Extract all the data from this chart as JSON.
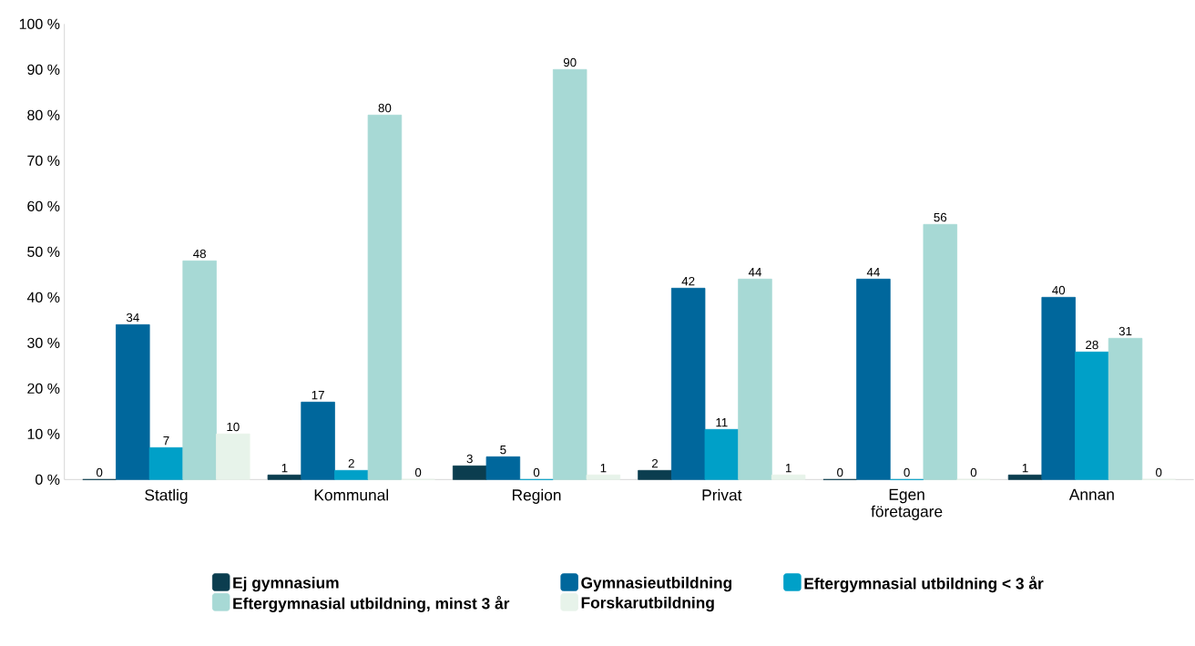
{
  "chart_data": {
    "type": "bar",
    "categories": [
      "Statlig",
      "Kommunal",
      "Region",
      "Privat",
      "Egen företagare",
      "Annan"
    ],
    "series": [
      {
        "name": "Ej gymnasium",
        "color": "#0b3d4f",
        "values": [
          0,
          1,
          3,
          2,
          0,
          1
        ]
      },
      {
        "name": "Gymnasieutbildning",
        "color": "#00679c",
        "values": [
          34,
          17,
          5,
          42,
          44,
          40
        ]
      },
      {
        "name": "Eftergymnasial utbildning < 3 år",
        "color": "#00a0c8",
        "values": [
          7,
          2,
          0,
          11,
          0,
          28
        ]
      },
      {
        "name": "Eftergymnasial utbildning, minst 3 år",
        "color": "#a7d9d5",
        "values": [
          48,
          80,
          90,
          44,
          56,
          31
        ]
      },
      {
        "name": "Forskarutbildning",
        "color": "#e7f3ea",
        "values": [
          10,
          0,
          1,
          1,
          0,
          0
        ]
      }
    ],
    "ylim": [
      0,
      100
    ],
    "yticks": [
      {
        "value": 0,
        "label": "0 %"
      },
      {
        "value": 10,
        "label": "10 %"
      },
      {
        "value": 20,
        "label": "20 %"
      },
      {
        "value": 30,
        "label": "30 %"
      },
      {
        "value": 40,
        "label": "40 %"
      },
      {
        "value": 50,
        "label": "50 %"
      },
      {
        "value": 60,
        "label": "60 %"
      },
      {
        "value": 70,
        "label": "70 %"
      },
      {
        "value": 80,
        "label": "80 %"
      },
      {
        "value": 90,
        "label": "90 %"
      },
      {
        "value": 100,
        "label": "100 %"
      }
    ],
    "data_labels": true,
    "grid": false,
    "legend": "bottom"
  }
}
